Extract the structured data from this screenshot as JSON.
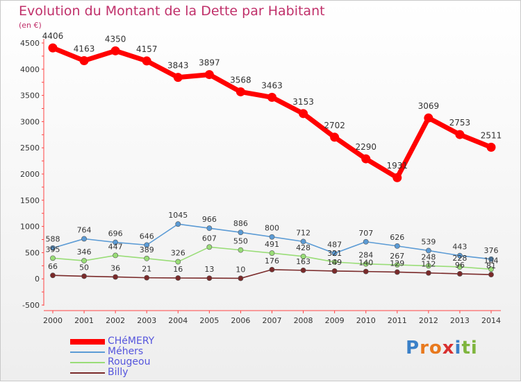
{
  "title": "Evolution du Montant de la Dette par Habitant",
  "subtitle": "(en €)",
  "brand": {
    "letters": [
      "P",
      "r",
      "o",
      "x",
      "i",
      "t",
      "i"
    ],
    "colors": [
      "#3a80c8",
      "#e8791e",
      "#e8791e",
      "#d83030",
      "#3a80c8",
      "#7fb53d",
      "#7fb53d"
    ]
  },
  "chart_data": {
    "type": "line",
    "x": [
      2000,
      2001,
      2002,
      2003,
      2004,
      2005,
      2006,
      2007,
      2008,
      2009,
      2010,
      2011,
      2012,
      2013,
      2014
    ],
    "y_ticks": [
      -500,
      0,
      500,
      1000,
      1500,
      2000,
      2500,
      3000,
      3500,
      4000,
      4500
    ],
    "ylim": [
      -500,
      4500
    ],
    "grid": false,
    "legend_placement": "bottom-left",
    "series": [
      {
        "name": "CHéMERY",
        "color": "#ff0000",
        "values": [
          4406,
          4163,
          4350,
          4157,
          3843,
          3897,
          3568,
          3463,
          3153,
          2702,
          2290,
          1931,
          3069,
          2753,
          2511
        ],
        "labels": [
          "4406",
          "4163",
          "4350",
          "4157",
          "3843",
          "3897",
          "3568",
          "3463",
          "3153",
          "2702",
          "2290",
          "1931",
          "3069",
          "2753",
          "2511"
        ]
      },
      {
        "name": "Méhers",
        "color": "#5b9bd5",
        "values": [
          588,
          764,
          696,
          646,
          1045,
          966,
          886,
          800,
          712,
          487,
          707,
          626,
          539,
          443,
          376
        ],
        "labels": [
          "588",
          "764",
          "696",
          "646",
          "1045",
          "966",
          "886",
          "800",
          "712",
          "487",
          "707",
          "626",
          "539",
          "443",
          "376"
        ]
      },
      {
        "name": "Rougeou",
        "color": "#99dd77",
        "values": [
          395,
          346,
          447,
          389,
          326,
          607,
          550,
          491,
          428,
          321,
          284,
          267,
          248,
          228,
          184
        ],
        "labels": [
          "395",
          "346",
          "447",
          "389",
          "326",
          "607",
          "550",
          "491",
          "428",
          "321",
          "284",
          "267",
          "248",
          "228",
          "184"
        ]
      },
      {
        "name": "Billy",
        "color": "#7a2a2a",
        "values": [
          66,
          50,
          36,
          21,
          16,
          13,
          10,
          176,
          163,
          149,
          140,
          129,
          112,
          96,
          81
        ],
        "labels": [
          "66",
          "50",
          "36",
          "21",
          "16",
          "13",
          "10",
          "176",
          "163",
          "149",
          "140",
          "129",
          "112",
          "96",
          "81"
        ]
      }
    ]
  }
}
